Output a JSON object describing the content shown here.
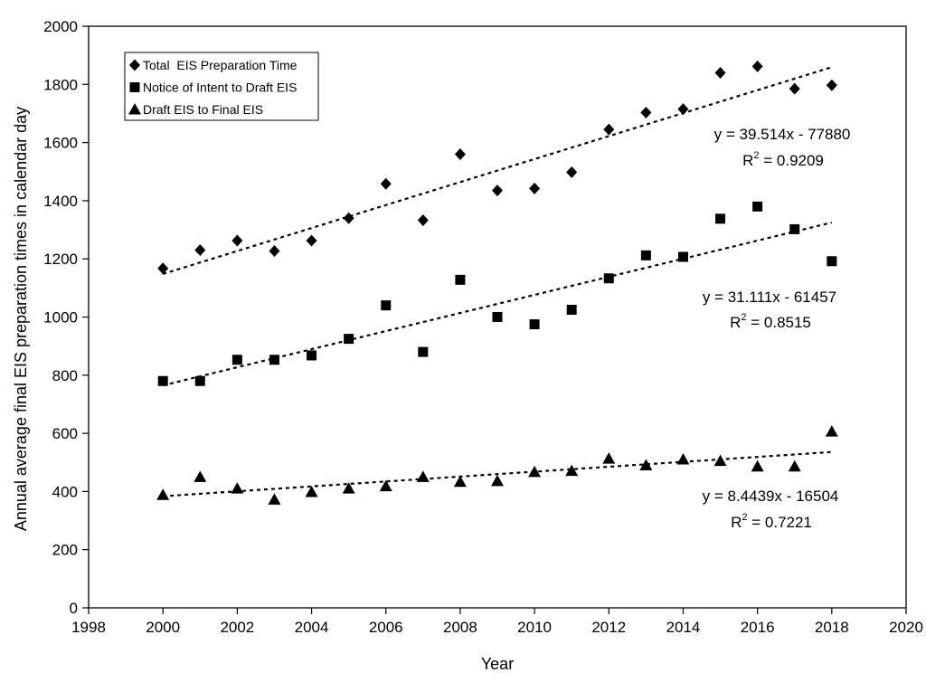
{
  "chart_data": {
    "type": "scatter",
    "xlabel": "Year",
    "ylabel": "Annual average final EIS preparation times in calendar day",
    "xlim": [
      1998,
      2020
    ],
    "ylim": [
      0,
      2000
    ],
    "xticks": [
      1998,
      2000,
      2002,
      2004,
      2006,
      2008,
      2010,
      2012,
      2014,
      2016,
      2018,
      2020
    ],
    "yticks": [
      0,
      200,
      400,
      600,
      800,
      1000,
      1200,
      1400,
      1600,
      1800,
      2000
    ],
    "grid": false,
    "legend_position": "top-left",
    "x": [
      2000,
      2001,
      2002,
      2003,
      2004,
      2005,
      2006,
      2007,
      2008,
      2009,
      2010,
      2011,
      2012,
      2013,
      2014,
      2015,
      2016,
      2017,
      2018
    ],
    "series": [
      {
        "name": "Total  EIS Preparation Time",
        "marker": "diamond",
        "values": [
          1167,
          1230,
          1263,
          1227,
          1263,
          1340,
          1458,
          1333,
          1560,
          1435,
          1442,
          1498,
          1645,
          1703,
          1715,
          1840,
          1862,
          1785,
          1797
        ],
        "trendline": {
          "slope": 39.514,
          "intercept": -77880,
          "equation": "y = 39.514x - 77880",
          "r2": "= 0.9209"
        }
      },
      {
        "name": "Notice of Intent to Draft EIS",
        "marker": "square",
        "values": [
          780,
          780,
          853,
          853,
          868,
          925,
          1040,
          880,
          1128,
          1000,
          975,
          1025,
          1133,
          1212,
          1207,
          1338,
          1380,
          1302,
          1192
        ],
        "trendline": {
          "slope": 31.111,
          "intercept": -61457,
          "equation": "y = 31.111x - 61457",
          "r2": "= 0.8515"
        }
      },
      {
        "name": "Draft EIS to Final EIS",
        "marker": "triangle",
        "values": [
          388,
          450,
          410,
          372,
          398,
          410,
          418,
          450,
          433,
          436,
          467,
          471,
          513,
          490,
          510,
          505,
          486,
          486,
          606
        ],
        "trendline": {
          "slope": 8.4439,
          "intercept": -16504,
          "equation": "y = 8.4439x - 16504",
          "r2": "= 0.7221"
        }
      }
    ],
    "r_symbol": "R",
    "r_superscript": "2"
  }
}
